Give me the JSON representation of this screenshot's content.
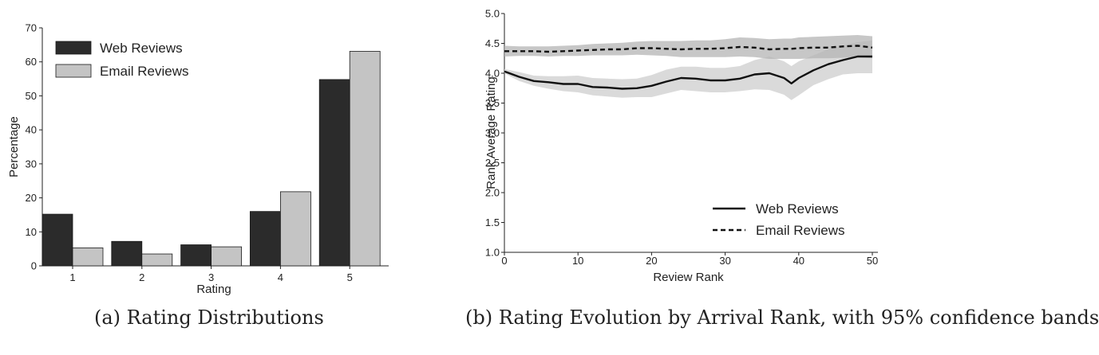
{
  "chart_data": [
    {
      "type": "bar",
      "categories": [
        "1",
        "2",
        "3",
        "4",
        "5"
      ],
      "series": [
        {
          "name": "Web Reviews",
          "values": [
            15.2,
            7.2,
            6.2,
            16.0,
            54.8
          ],
          "color": "#2b2b2b"
        },
        {
          "name": "Email Reviews",
          "values": [
            5.3,
            3.5,
            5.6,
            21.8,
            63.1
          ],
          "color": "#c4c4c4"
        }
      ],
      "xlabel": "Rating",
      "ylabel": "Percentage",
      "ylim": [
        0,
        70
      ],
      "yticks": [
        "0",
        "10",
        "20",
        "30",
        "40",
        "50",
        "60",
        "70"
      ],
      "grid": false,
      "legend": "top-left",
      "caption": "(a) Rating Distributions"
    },
    {
      "type": "line",
      "xlabel": "Review Rank",
      "ylabel": "Rank Average Rating",
      "xlim": [
        0,
        50
      ],
      "ylim": [
        1.0,
        5.0
      ],
      "xticks": [
        "0",
        "10",
        "20",
        "30",
        "40",
        "50"
      ],
      "yticks": [
        "1.0",
        "1.5",
        "2.0",
        "2.5",
        "3.0",
        "3.5",
        "4.0",
        "4.5",
        "5.0"
      ],
      "grid": false,
      "legend": "bottom-right",
      "x": [
        0,
        2,
        4,
        6,
        8,
        10,
        12,
        14,
        16,
        18,
        20,
        22,
        24,
        26,
        28,
        30,
        32,
        34,
        36,
        38,
        39,
        40,
        42,
        44,
        46,
        48,
        50
      ],
      "series": [
        {
          "name": "Web Reviews",
          "style": "solid",
          "values": [
            4.03,
            3.94,
            3.87,
            3.85,
            3.82,
            3.82,
            3.77,
            3.76,
            3.74,
            3.75,
            3.79,
            3.86,
            3.92,
            3.91,
            3.88,
            3.88,
            3.91,
            3.98,
            4.0,
            3.92,
            3.83,
            3.92,
            4.05,
            4.15,
            4.22,
            4.28,
            4.28
          ],
          "lower": [
            4.0,
            3.87,
            3.79,
            3.74,
            3.7,
            3.68,
            3.63,
            3.61,
            3.59,
            3.6,
            3.6,
            3.66,
            3.72,
            3.7,
            3.68,
            3.68,
            3.7,
            3.73,
            3.72,
            3.64,
            3.55,
            3.63,
            3.8,
            3.9,
            3.98,
            4.0,
            4.0
          ],
          "upper": [
            4.07,
            4.02,
            3.96,
            3.95,
            3.95,
            3.96,
            3.92,
            3.91,
            3.9,
            3.91,
            3.97,
            4.06,
            4.11,
            4.11,
            4.09,
            4.09,
            4.12,
            4.22,
            4.28,
            4.2,
            4.12,
            4.2,
            4.3,
            4.4,
            4.46,
            4.52,
            4.55
          ]
        },
        {
          "name": "Email Reviews",
          "style": "dashed",
          "values": [
            4.37,
            4.37,
            4.37,
            4.36,
            4.37,
            4.38,
            4.39,
            4.4,
            4.4,
            4.42,
            4.42,
            4.41,
            4.4,
            4.41,
            4.41,
            4.42,
            4.44,
            4.43,
            4.4,
            4.41,
            4.41,
            4.42,
            4.43,
            4.43,
            4.45,
            4.46,
            4.43
          ],
          "lower": [
            4.28,
            4.29,
            4.29,
            4.28,
            4.29,
            4.29,
            4.3,
            4.3,
            4.3,
            4.31,
            4.3,
            4.29,
            4.27,
            4.27,
            4.27,
            4.27,
            4.28,
            4.27,
            4.24,
            4.24,
            4.24,
            4.24,
            4.25,
            4.25,
            4.26,
            4.27,
            4.25
          ],
          "upper": [
            4.46,
            4.45,
            4.45,
            4.45,
            4.46,
            4.47,
            4.49,
            4.5,
            4.51,
            4.53,
            4.54,
            4.54,
            4.54,
            4.55,
            4.55,
            4.57,
            4.6,
            4.59,
            4.57,
            4.58,
            4.58,
            4.6,
            4.61,
            4.62,
            4.63,
            4.64,
            4.62
          ]
        }
      ],
      "caption": "(b) Rating Evolution by Arrival Rank, with 95% confidence bands"
    }
  ]
}
